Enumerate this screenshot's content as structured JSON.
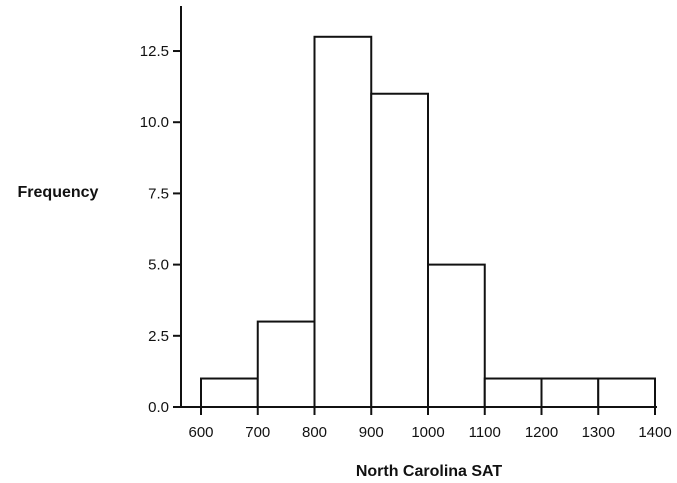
{
  "chart_data": {
    "type": "bar",
    "histogram": true,
    "title": "",
    "xlabel": "North Carolina SAT",
    "ylabel": "Frequency",
    "bins": [
      {
        "start": 600,
        "end": 700,
        "count": 1
      },
      {
        "start": 700,
        "end": 800,
        "count": 3
      },
      {
        "start": 800,
        "end": 900,
        "count": 13
      },
      {
        "start": 900,
        "end": 1000,
        "count": 11
      },
      {
        "start": 1000,
        "end": 1100,
        "count": 5
      },
      {
        "start": 1100,
        "end": 1200,
        "count": 1
      },
      {
        "start": 1200,
        "end": 1300,
        "count": 1
      },
      {
        "start": 1300,
        "end": 1400,
        "count": 1
      }
    ],
    "xticks": [
      "600",
      "700",
      "800",
      "900",
      "1000",
      "1100",
      "1200",
      "1300",
      "1400"
    ],
    "yticks": [
      "0.0",
      "2.5",
      "5.0",
      "7.5",
      "10.0",
      "12.5"
    ],
    "xlim": [
      600,
      1400
    ],
    "ylim": [
      0,
      13.8
    ],
    "grid": false,
    "colors": {
      "bar_fill": "#ffffff",
      "bar_stroke": "#111111"
    }
  }
}
